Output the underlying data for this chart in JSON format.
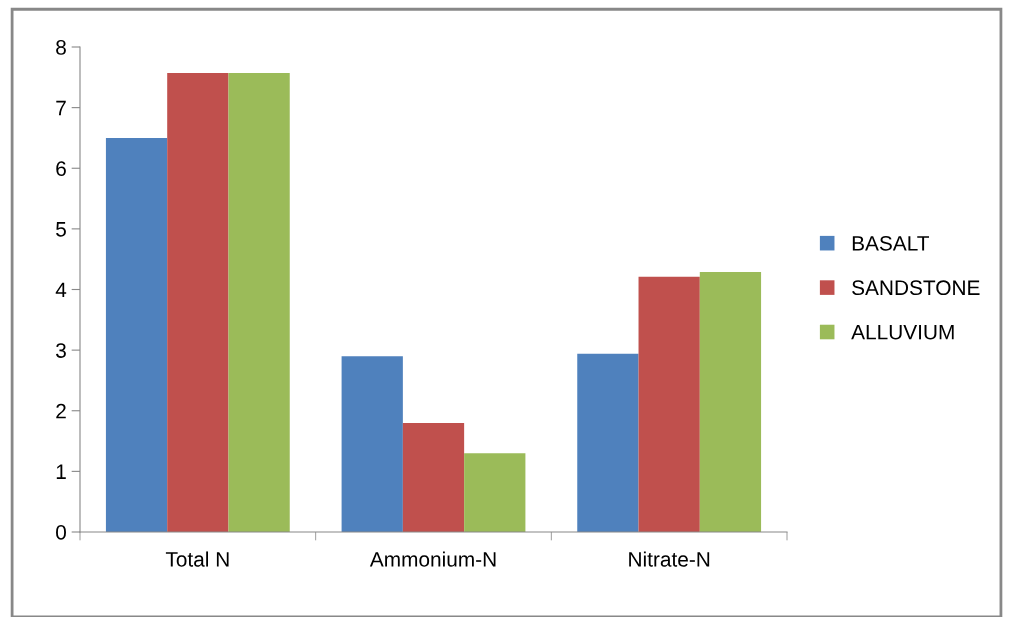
{
  "chart_data": {
    "type": "bar",
    "categories": [
      "Total N",
      "Ammonium-N",
      "Nitrate-N"
    ],
    "series": [
      {
        "name": "BASALT",
        "color": "#4f81bd",
        "values": [
          6.5,
          2.9,
          2.94
        ]
      },
      {
        "name": "SANDSTONE",
        "color": "#c0504d",
        "values": [
          7.57,
          1.8,
          4.21
        ]
      },
      {
        "name": "ALLUVIUM",
        "color": "#9bbb59",
        "values": [
          7.57,
          1.3,
          4.29
        ]
      }
    ],
    "ylim": [
      0,
      8
    ],
    "yticks": [
      0,
      1,
      2,
      3,
      4,
      5,
      6,
      7,
      8
    ],
    "grid": false,
    "legend": "right"
  }
}
